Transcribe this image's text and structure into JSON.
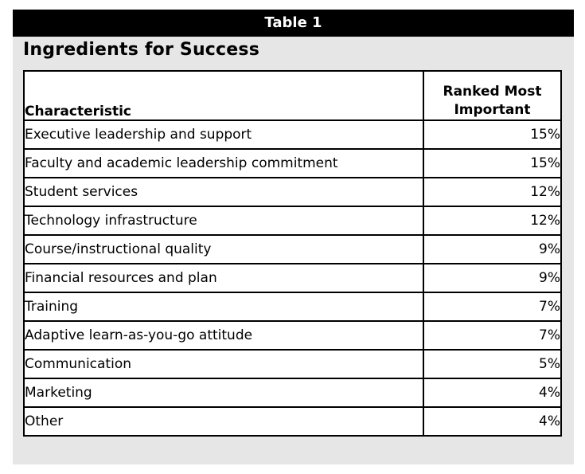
{
  "header": {
    "label": "Table 1"
  },
  "title": "Ingredients for Success",
  "table": {
    "columns": {
      "characteristic": "Characteristic",
      "ranked_line1": "Ranked Most",
      "ranked_line2": "Important"
    },
    "rows": [
      {
        "characteristic": "Executive leadership and support",
        "value": "15%"
      },
      {
        "characteristic": "Faculty and academic leadership commitment",
        "value": "15%"
      },
      {
        "characteristic": "Student services",
        "value": "12%"
      },
      {
        "characteristic": "Technology infrastructure",
        "value": "12%"
      },
      {
        "characteristic": "Course/instructional quality",
        "value": "9%"
      },
      {
        "characteristic": "Financial resources and plan",
        "value": "9%"
      },
      {
        "characteristic": "Training",
        "value": "7%"
      },
      {
        "characteristic": "Adaptive learn-as-you-go attitude",
        "value": "7%"
      },
      {
        "characteristic": "Communication",
        "value": "5%"
      },
      {
        "characteristic": "Marketing",
        "value": "4%"
      },
      {
        "characteristic": "Other",
        "value": "4%"
      }
    ]
  }
}
